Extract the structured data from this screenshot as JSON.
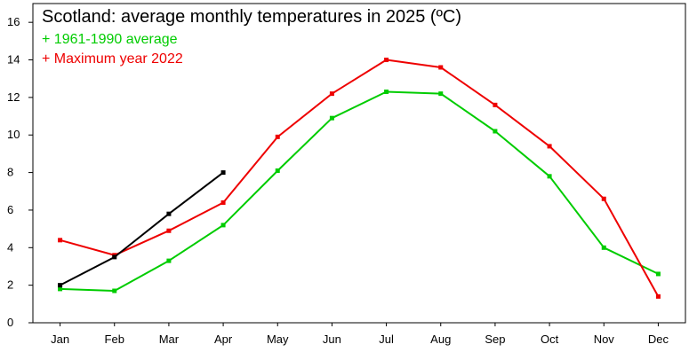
{
  "chart_data": {
    "type": "line",
    "title": "Scotland: average monthly temperatures in 2025 (ºC)",
    "categories": [
      "Jan",
      "Feb",
      "Mar",
      "Apr",
      "May",
      "Jun",
      "Jul",
      "Aug",
      "Sep",
      "Oct",
      "Nov",
      "Dec"
    ],
    "ylim": [
      0,
      17
    ],
    "yticks": [
      "0",
      "2",
      "4",
      "6",
      "8",
      "10",
      "12",
      "14",
      "16"
    ],
    "grid": false,
    "legend_position": "top-left",
    "series": [
      {
        "key": "avg",
        "name": "1961-1990 average",
        "legend_text": "+ 1961-1990 average",
        "color": "#00cc00",
        "values": [
          1.8,
          1.7,
          3.3,
          5.2,
          8.1,
          10.9,
          12.3,
          12.2,
          10.2,
          7.8,
          4.0,
          2.6
        ]
      },
      {
        "key": "max",
        "name": "Maximum year 2022",
        "legend_text": "+ Maximum year 2022",
        "color": "#ee0000",
        "values": [
          4.4,
          3.6,
          4.9,
          6.4,
          9.9,
          12.2,
          14.0,
          13.6,
          11.6,
          9.4,
          6.6,
          1.4
        ]
      },
      {
        "key": "y2025",
        "color": "#000000",
        "values": [
          2.0,
          3.5,
          5.8,
          8.0,
          null,
          null,
          null,
          null,
          null,
          null,
          null,
          null
        ]
      }
    ]
  }
}
